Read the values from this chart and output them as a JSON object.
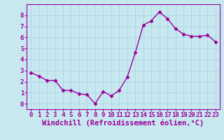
{
  "x": [
    0,
    1,
    2,
    3,
    4,
    5,
    6,
    7,
    8,
    9,
    10,
    11,
    12,
    13,
    14,
    15,
    16,
    17,
    18,
    19,
    20,
    21,
    22,
    23
  ],
  "y": [
    2.8,
    2.5,
    2.1,
    2.1,
    1.2,
    1.2,
    0.9,
    0.8,
    0.0,
    1.1,
    0.7,
    1.2,
    2.4,
    4.6,
    7.1,
    7.5,
    8.3,
    7.7,
    6.8,
    6.3,
    6.1,
    6.1,
    6.2,
    5.6
  ],
  "line_color": "#990099",
  "marker": "D",
  "marker_size": 2.5,
  "bg_color": "#c8e8f0",
  "grid_color": "#b0d8e8",
  "xlabel": "Windchill (Refroidissement éolien,°C)",
  "ylabel": "",
  "xlim": [
    -0.5,
    23.5
  ],
  "ylim": [
    -0.5,
    9.0
  ],
  "yticks": [
    0,
    1,
    2,
    3,
    4,
    5,
    6,
    7,
    8
  ],
  "xticks": [
    0,
    1,
    2,
    3,
    4,
    5,
    6,
    7,
    8,
    9,
    10,
    11,
    12,
    13,
    14,
    15,
    16,
    17,
    18,
    19,
    20,
    21,
    22,
    23
  ],
  "tick_label_color": "#990099",
  "xlabel_color": "#990099",
  "axis_color": "#990099",
  "font_size": 6.5,
  "xlabel_font_size": 7.5
}
